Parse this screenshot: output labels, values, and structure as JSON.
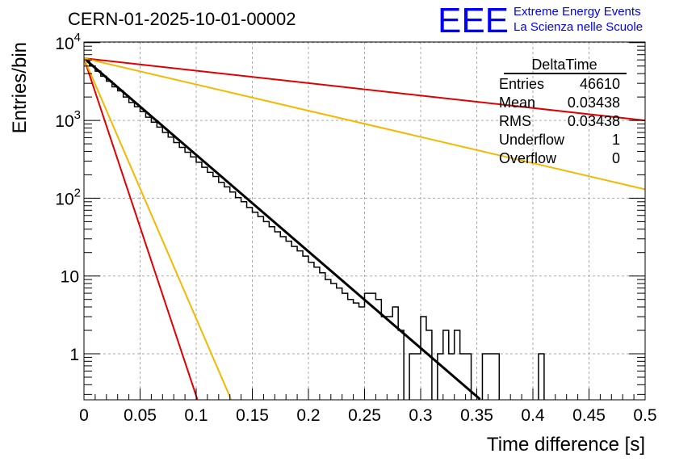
{
  "chart_data": {
    "type": "histogram",
    "title": "CERN-01-2025-10-01-00002",
    "logo": {
      "text": "EEE",
      "line1": "Extreme Energy Events",
      "line2": "La Scienza nelle Scuole",
      "color": "#0000ff"
    },
    "xlabel": "Time difference [s]",
    "ylabel": "Entries/bin",
    "xlim": [
      0,
      0.5
    ],
    "ylim": [
      0.26,
      11000
    ],
    "yscale": "log",
    "grid": true,
    "x_ticks": [
      "0",
      "0.05",
      "0.1",
      "0.15",
      "0.2",
      "0.25",
      "0.3",
      "0.35",
      "0.4",
      "0.45",
      "0.5"
    ],
    "x_tick_values": [
      0,
      0.05,
      0.1,
      0.15,
      0.2,
      0.25,
      0.3,
      0.35,
      0.4,
      0.45,
      0.5
    ],
    "y_ticks": [
      {
        "base": "10",
        "exp": "4",
        "value": 10000
      },
      {
        "base": "10",
        "exp": "3",
        "value": 1000
      },
      {
        "base": "10",
        "exp": "2",
        "value": 100
      },
      {
        "base": "10",
        "exp": "",
        "value": 10
      },
      {
        "base": "1",
        "exp": "",
        "value": 1
      }
    ],
    "stats_box": {
      "title": "DeltaTime",
      "rows": [
        {
          "label": "Entries",
          "value": "46610"
        },
        {
          "label": "Mean",
          "value": "0.03438"
        },
        {
          "label": "RMS",
          "value": "0.03438"
        },
        {
          "label": "Underflow",
          "value": "1"
        },
        {
          "label": "Overflow",
          "value": "0"
        }
      ],
      "position": "top-right"
    },
    "histogram": {
      "bin_width": 0.005,
      "bin_start": 0,
      "values": [
        5800,
        5000,
        4300,
        3700,
        3200,
        2700,
        2400,
        2000,
        1700,
        1500,
        1300,
        1100,
        950,
        820,
        700,
        610,
        520,
        450,
        390,
        340,
        290,
        250,
        215,
        190,
        160,
        140,
        120,
        102,
        90,
        76,
        66,
        58,
        50,
        43,
        37,
        32,
        28,
        24,
        21,
        18,
        15,
        13,
        11,
        9,
        8,
        7,
        6,
        5,
        4.5,
        4,
        6,
        6,
        5,
        3,
        3,
        4,
        2,
        0,
        1,
        1,
        3,
        2,
        0,
        1,
        2,
        1,
        2,
        1,
        1,
        0,
        0,
        1,
        1,
        1,
        0,
        0,
        0,
        0,
        0,
        0,
        0,
        1,
        0,
        0,
        0,
        0,
        0,
        0,
        0,
        0,
        0,
        0,
        0,
        0,
        0,
        0,
        0,
        0,
        0,
        0
      ],
      "color": "#000000"
    },
    "series": [
      {
        "name": "fit",
        "type": "line",
        "color": "#000000",
        "x": [
          0,
          0.353
        ],
        "y": [
          6300,
          0.26
        ]
      },
      {
        "name": "red-steep",
        "type": "line",
        "color": "#e00000",
        "x": [
          0,
          0.101
        ],
        "y": [
          6300,
          0.26
        ]
      },
      {
        "name": "yellow-steep",
        "type": "line",
        "color": "#f5b800",
        "x": [
          0,
          0.131
        ],
        "y": [
          6300,
          0.26
        ]
      },
      {
        "name": "red-shallow",
        "type": "line",
        "color": "#e00000",
        "x": [
          0,
          0.5
        ],
        "y": [
          6300,
          1000
        ]
      },
      {
        "name": "yellow-shallow",
        "type": "line",
        "color": "#f5b800",
        "x": [
          0,
          0.5
        ],
        "y": [
          6300,
          130
        ]
      }
    ]
  }
}
